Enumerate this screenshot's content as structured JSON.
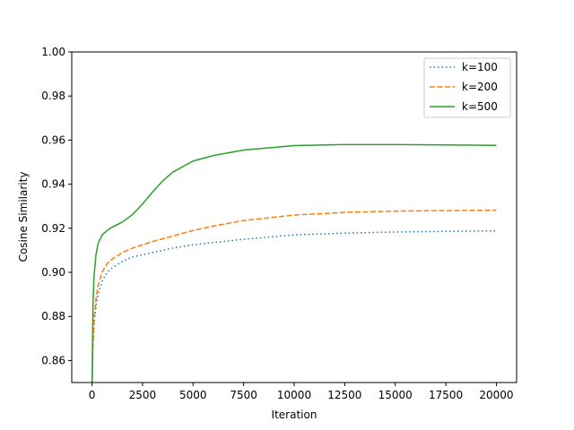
{
  "chart_data": {
    "type": "line",
    "xlabel": "Iteration",
    "ylabel": "Cosine Similarity",
    "xlim": [
      -1000,
      21000
    ],
    "ylim": [
      0.85,
      1.0
    ],
    "xticks": [
      0,
      2500,
      5000,
      7500,
      10000,
      12500,
      15000,
      17500,
      20000
    ],
    "xtick_labels": [
      "0",
      "2500",
      "5000",
      "7500",
      "10000",
      "12500",
      "15000",
      "17500",
      "20000"
    ],
    "yticks": [
      0.86,
      0.88,
      0.9,
      0.92,
      0.94,
      0.96,
      0.98,
      1.0
    ],
    "ytick_labels": [
      "0.86",
      "0.88",
      "0.90",
      "0.92",
      "0.94",
      "0.96",
      "0.98",
      "1.00"
    ],
    "grid": false,
    "legend_position": "top-right",
    "series": [
      {
        "name": "k=100",
        "color": "#1f77b4",
        "style": "dotted",
        "x": [
          0,
          50,
          100,
          200,
          300,
          500,
          750,
          1000,
          1500,
          2000,
          2500,
          3000,
          4000,
          5000,
          6000,
          7500,
          10000,
          12500,
          15000,
          17500,
          20000
        ],
        "y": [
          0.845,
          0.866,
          0.876,
          0.885,
          0.89,
          0.896,
          0.9,
          0.902,
          0.905,
          0.907,
          0.908,
          0.909,
          0.911,
          0.9125,
          0.9135,
          0.915,
          0.917,
          0.9178,
          0.9183,
          0.9186,
          0.9188
        ]
      },
      {
        "name": "k=200",
        "color": "#ff7f0e",
        "style": "dashed",
        "x": [
          0,
          50,
          100,
          200,
          300,
          500,
          750,
          1000,
          1500,
          2000,
          2500,
          3000,
          4000,
          5000,
          6000,
          7500,
          10000,
          12500,
          15000,
          17500,
          20000
        ],
        "y": [
          0.845,
          0.868,
          0.878,
          0.888,
          0.894,
          0.9,
          0.904,
          0.906,
          0.909,
          0.911,
          0.9125,
          0.914,
          0.9165,
          0.919,
          0.921,
          0.9235,
          0.926,
          0.9272,
          0.9278,
          0.928,
          0.9282
        ]
      },
      {
        "name": "k=500",
        "color": "#2ca02c",
        "style": "solid",
        "x": [
          0,
          50,
          100,
          200,
          300,
          500,
          750,
          1000,
          1500,
          2000,
          2500,
          3000,
          3500,
          4000,
          5000,
          6000,
          7500,
          10000,
          12500,
          15000,
          17500,
          20000
        ],
        "y": [
          0.845,
          0.885,
          0.898,
          0.908,
          0.913,
          0.917,
          0.919,
          0.9205,
          0.9228,
          0.9262,
          0.931,
          0.9365,
          0.9415,
          0.9455,
          0.9505,
          0.953,
          0.9555,
          0.9575,
          0.958,
          0.958,
          0.9578,
          0.9576
        ]
      }
    ]
  }
}
